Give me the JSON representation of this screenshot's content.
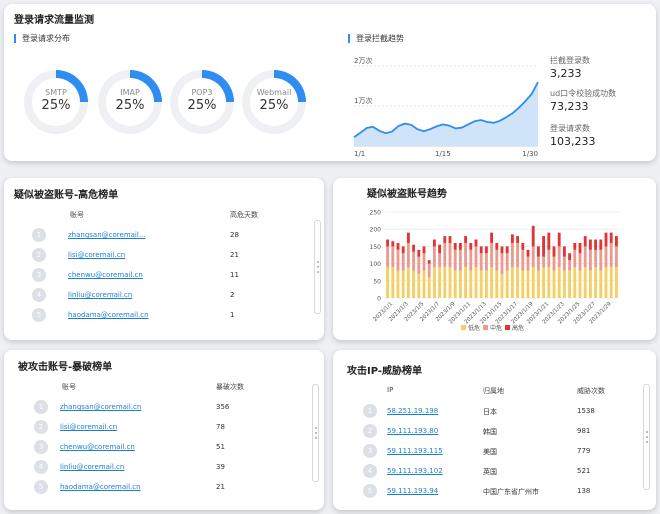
{
  "top": {
    "title": "登录请求流量监测",
    "dist_title": "登录请求分布",
    "trend_title": "登录拦截趋势",
    "protocols": [
      {
        "name": "SMTP",
        "percent": "25%",
        "fraction": 0.25
      },
      {
        "name": "IMAP",
        "percent": "25%",
        "fraction": 0.25
      },
      {
        "name": "POP3",
        "percent": "25%",
        "fraction": 0.25
      },
      {
        "name": "Webmail",
        "percent": "25%",
        "fraction": 0.25
      }
    ],
    "stats": [
      {
        "label": "拦截登录数",
        "value": "3,233"
      },
      {
        "label": "ud口令校验成功数",
        "value": "73,233"
      },
      {
        "label": "登录请求数",
        "value": "103,233"
      }
    ]
  },
  "colors": {
    "accent": "#2f8cf0",
    "area": "#cfe4f8",
    "low": "#f5cf63",
    "mid": "#ea9a8e",
    "high": "#e03535"
  },
  "chart_data": [
    {
      "type": "area",
      "title": "登录拦截趋势",
      "y_ticks": [
        "2万次",
        "1万次"
      ],
      "x_ticks": [
        "1/1",
        "1/15",
        "1/30"
      ],
      "x": [
        1,
        2,
        3,
        4,
        5,
        6,
        7,
        8,
        9,
        10,
        11,
        12,
        13,
        14,
        15,
        16,
        17,
        18,
        19,
        20,
        21,
        22,
        23,
        24,
        25,
        26,
        27,
        28,
        29,
        30
      ],
      "values": [
        2200,
        3300,
        4500,
        4800,
        3800,
        3200,
        3600,
        5000,
        5600,
        5300,
        4200,
        3700,
        4200,
        4900,
        5400,
        5100,
        4400,
        4600,
        5400,
        6200,
        6500,
        6000,
        5800,
        6300,
        7200,
        8200,
        9600,
        11200,
        13000,
        16000
      ],
      "ylim": [
        0,
        20000
      ]
    },
    {
      "type": "bar",
      "stacked": true,
      "title": "疑似被盗账号趋势",
      "ylim": [
        0,
        250
      ],
      "y_ticks": [
        0,
        50,
        100,
        150,
        200,
        250
      ],
      "x_labels": [
        "2023/1/1",
        "2023/1/3",
        "2023/1/5",
        "2023/1/7",
        "2023/1/9",
        "2023/1/11",
        "2023/1/13",
        "2023/1/15",
        "2023/1/17",
        "2023/1/19",
        "2023/1/21",
        "2023/1/23",
        "2023/1/25",
        "2023/1/27",
        "2023/1/29"
      ],
      "legend": [
        "低危",
        "中危",
        "高危"
      ],
      "series": [
        {
          "name": "低危",
          "values": [
            90,
            90,
            80,
            80,
            90,
            80,
            70,
            80,
            60,
            90,
            90,
            90,
            90,
            80,
            80,
            90,
            80,
            90,
            80,
            80,
            90,
            80,
            70,
            80,
            90,
            90,
            80,
            80,
            90,
            80,
            90,
            90,
            80,
            90,
            80,
            80,
            90,
            80,
            90,
            80,
            90,
            80,
            90,
            90,
            90
          ]
        },
        {
          "name": "中危",
          "values": [
            60,
            60,
            60,
            50,
            70,
            55,
            50,
            50,
            40,
            60,
            40,
            70,
            70,
            60,
            60,
            70,
            60,
            60,
            50,
            50,
            70,
            60,
            60,
            50,
            70,
            70,
            60,
            40,
            60,
            40,
            30,
            50,
            40,
            60,
            40,
            30,
            50,
            50,
            60,
            60,
            50,
            60,
            60,
            70,
            60
          ]
        },
        {
          "name": "高危",
          "values": [
            20,
            15,
            20,
            20,
            30,
            20,
            20,
            20,
            10,
            20,
            25,
            20,
            20,
            20,
            20,
            20,
            20,
            20,
            20,
            20,
            30,
            20,
            20,
            20,
            25,
            20,
            20,
            20,
            60,
            30,
            60,
            50,
            30,
            40,
            30,
            20,
            20,
            30,
            30,
            30,
            30,
            30,
            40,
            30,
            30
          ]
        }
      ]
    }
  ],
  "suspect": {
    "title": "疑似被盗账号-高危榜单",
    "col_account": "账号",
    "col_days": "高危天数",
    "rows": [
      {
        "rank": "1",
        "account": "zhangsan@coremail...",
        "value": "28"
      },
      {
        "rank": "2",
        "account": "lisi@coremail.cn",
        "value": "21"
      },
      {
        "rank": "3",
        "account": "chenwu@coremail.cn",
        "value": "11"
      },
      {
        "rank": "4",
        "account": "linliu@coremail.cn",
        "value": "2"
      },
      {
        "rank": "5",
        "account": "haodama@coremail.cn",
        "value": "1"
      }
    ]
  },
  "trend": {
    "title": "疑似被盗账号趋势"
  },
  "attacked": {
    "title": "被攻击账号-暴破榜单",
    "col_account": "账号",
    "col_count": "暴破次数",
    "rows": [
      {
        "rank": "1",
        "account": "zhangsan@coremail.cn",
        "value": "356"
      },
      {
        "rank": "2",
        "account": "lisi@coremail.cn",
        "value": "78"
      },
      {
        "rank": "3",
        "account": "chenwu@coremail.cn",
        "value": "51"
      },
      {
        "rank": "4",
        "account": "linliu@coremail.cn",
        "value": "39"
      },
      {
        "rank": "5",
        "account": "haodama@coremail.cn",
        "value": "21"
      }
    ]
  },
  "ip": {
    "title": "攻击IP-威胁榜单",
    "col_ip": "IP",
    "col_region": "归属地",
    "col_count": "威胁次数",
    "rows": [
      {
        "rank": "1",
        "ip": "58.251.19.198",
        "region": "日本",
        "value": "1538"
      },
      {
        "rank": "2",
        "ip": "59.111.193.80",
        "region": "韩国",
        "value": "981"
      },
      {
        "rank": "3",
        "ip": "59.111.193.115",
        "region": "美国",
        "value": "779"
      },
      {
        "rank": "4",
        "ip": "59.111.193.102",
        "region": "英国",
        "value": "521"
      },
      {
        "rank": "5",
        "ip": "59.111.193.94",
        "region": "中国广东省广州市",
        "value": "138"
      }
    ]
  }
}
